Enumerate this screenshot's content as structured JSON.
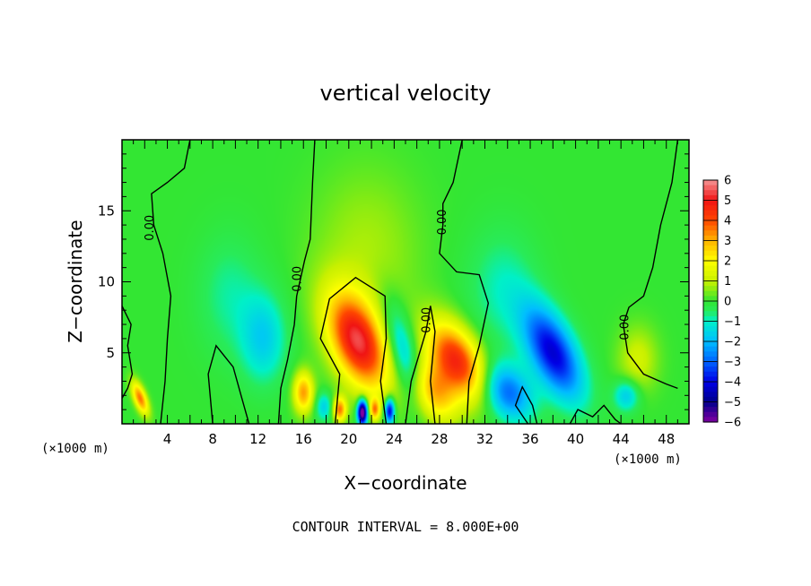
{
  "chart_data": {
    "type": "heatmap",
    "title": "vertical velocity",
    "xlabel": "X−coordinate",
    "ylabel": "Z−coordinate",
    "x_unit": "(×1000 m)",
    "y_unit": "(×1000 m)",
    "xlim": [
      0,
      50
    ],
    "ylim": [
      0,
      20
    ],
    "x_ticks": [
      4,
      8,
      12,
      16,
      20,
      24,
      28,
      32,
      36,
      40,
      44,
      48
    ],
    "y_ticks": [
      5,
      10,
      15
    ],
    "colorbar": {
      "ticks": [
        6,
        5,
        4,
        3,
        2,
        1,
        0,
        -1,
        -2,
        -3,
        -4,
        -5,
        -6
      ],
      "tick_labels": [
        "6",
        "5",
        "4",
        "3",
        "2",
        "1",
        "0",
        "−1",
        "−2",
        "−3",
        "−4",
        "−5",
        "−6"
      ],
      "range": [
        -6,
        6
      ]
    },
    "contour_label": "0.00",
    "footer": "CONTOUR INTERVAL = 8.000E+00",
    "features": [
      {
        "x": 20.8,
        "z": 5.8,
        "sx": 1.7,
        "sz": 2.4,
        "amp": 5.2,
        "tilt": -0.35
      },
      {
        "x": 29.5,
        "z": 4.5,
        "sx": 1.6,
        "sz": 1.9,
        "amp": 4.6,
        "tilt": -0.45
      },
      {
        "x": 27.5,
        "z": 2.2,
        "sx": 1.4,
        "sz": 1.5,
        "amp": 2.8,
        "tilt": -0.3
      },
      {
        "x": 16.0,
        "z": 2.2,
        "sx": 0.6,
        "sz": 1.0,
        "amp": 3.2,
        "tilt": 0.0
      },
      {
        "x": 1.6,
        "z": 1.8,
        "sx": 0.4,
        "sz": 0.8,
        "amp": 3.6,
        "tilt": -0.4
      },
      {
        "x": 21.5,
        "z": 12.0,
        "sx": 3.2,
        "sz": 4.0,
        "amp": 0.8,
        "tilt": 0.0
      },
      {
        "x": 45.5,
        "z": 4.5,
        "sx": 1.2,
        "sz": 1.6,
        "amp": 1.2,
        "tilt": 0.0
      },
      {
        "x": 38.0,
        "z": 5.0,
        "sx": 1.5,
        "sz": 2.3,
        "amp": -4.2,
        "tilt": -0.45
      },
      {
        "x": 34.0,
        "z": 2.2,
        "sx": 1.5,
        "sz": 1.4,
        "amp": -3.0,
        "tilt": -0.3
      },
      {
        "x": 12.5,
        "z": 6.0,
        "sx": 1.4,
        "sz": 2.2,
        "amp": -1.6,
        "tilt": 0.0
      },
      {
        "x": 24.8,
        "z": 5.0,
        "sx": 0.9,
        "sz": 2.5,
        "amp": -2.0,
        "tilt": -0.3
      },
      {
        "x": 21.2,
        "z": 0.8,
        "sx": 0.3,
        "sz": 0.6,
        "amp": -7.0,
        "tilt": 0.0
      },
      {
        "x": 23.6,
        "z": 0.9,
        "sx": 0.3,
        "sz": 0.6,
        "amp": -4.5,
        "tilt": 0.0
      },
      {
        "x": 44.5,
        "z": 2.0,
        "sx": 0.8,
        "sz": 0.8,
        "amp": -1.8,
        "tilt": 0.0
      },
      {
        "x": 9.5,
        "z": 9.0,
        "sx": 2.0,
        "sz": 3.0,
        "amp": -0.8,
        "tilt": 0.0
      },
      {
        "x": 33.5,
        "z": 9.5,
        "sx": 2.2,
        "sz": 3.0,
        "amp": -0.9,
        "tilt": 0.0
      },
      {
        "x": 17.8,
        "z": 1.2,
        "sx": 0.5,
        "sz": 0.7,
        "amp": -1.6,
        "tilt": 0.0
      },
      {
        "x": 19.2,
        "z": 1.0,
        "sx": 0.4,
        "sz": 0.6,
        "amp": 3.5,
        "tilt": 0.0
      },
      {
        "x": 22.3,
        "z": 1.0,
        "sx": 0.3,
        "sz": 0.5,
        "amp": 3.0,
        "tilt": 0.0
      }
    ],
    "zero_contours": [
      [
        [
          6.0,
          20.0
        ],
        [
          5.5,
          18.0
        ],
        [
          4.0,
          17.0
        ],
        [
          2.6,
          16.2
        ],
        [
          2.8,
          14.0
        ],
        [
          3.6,
          12.0
        ],
        [
          4.3,
          9.0
        ],
        [
          4.0,
          6.0
        ],
        [
          3.8,
          3.0
        ],
        [
          3.4,
          0.0
        ]
      ],
      [
        [
          17.0,
          20.0
        ],
        [
          16.8,
          17.0
        ],
        [
          16.6,
          13.0
        ],
        [
          16.1,
          11.5
        ],
        [
          15.4,
          9.0
        ],
        [
          15.2,
          7.0
        ],
        [
          14.6,
          4.5
        ],
        [
          14.0,
          2.5
        ],
        [
          13.8,
          0.0
        ]
      ],
      [
        [
          30.0,
          20.0
        ],
        [
          29.2,
          17.0
        ],
        [
          28.3,
          15.5
        ],
        [
          28.3,
          14.0
        ],
        [
          28.0,
          12.0
        ],
        [
          29.5,
          10.7
        ],
        [
          31.5,
          10.5
        ],
        [
          32.3,
          8.5
        ],
        [
          31.5,
          5.5
        ],
        [
          30.6,
          3.0
        ],
        [
          30.4,
          0.0
        ]
      ],
      [
        [
          49.0,
          20.0
        ],
        [
          48.5,
          17.0
        ],
        [
          47.5,
          14.0
        ],
        [
          46.8,
          11.0
        ],
        [
          46.0,
          9.0
        ],
        [
          44.7,
          8.2
        ],
        [
          44.2,
          7.0
        ],
        [
          44.6,
          5.0
        ],
        [
          46.0,
          3.5
        ],
        [
          48.0,
          2.8
        ],
        [
          49.0,
          2.5
        ]
      ],
      [
        [
          0.0,
          8.3
        ],
        [
          0.8,
          7.0
        ],
        [
          0.5,
          5.5
        ],
        [
          0.9,
          3.5
        ],
        [
          0.5,
          2.5
        ],
        [
          0.0,
          1.8
        ]
      ],
      [
        [
          8.0,
          0.0
        ],
        [
          7.6,
          3.5
        ],
        [
          8.3,
          5.5
        ],
        [
          9.8,
          4.0
        ],
        [
          10.5,
          2.0
        ],
        [
          11.2,
          0.0
        ]
      ],
      [
        [
          18.8,
          0.0
        ],
        [
          19.2,
          3.5
        ],
        [
          17.5,
          6.0
        ],
        [
          18.3,
          8.8
        ],
        [
          20.6,
          10.3
        ],
        [
          23.2,
          9.0
        ],
        [
          23.3,
          6.0
        ],
        [
          22.8,
          3.0
        ],
        [
          23.3,
          0.0
        ]
      ],
      [
        [
          25.0,
          0.0
        ],
        [
          25.5,
          3.0
        ],
        [
          26.8,
          6.5
        ],
        [
          27.2,
          8.3
        ],
        [
          27.6,
          6.5
        ],
        [
          27.2,
          3.0
        ],
        [
          27.6,
          0.0
        ]
      ],
      [
        [
          35.8,
          0.0
        ],
        [
          34.7,
          1.3
        ],
        [
          35.3,
          2.6
        ],
        [
          36.2,
          1.3
        ],
        [
          36.6,
          0.0
        ]
      ],
      [
        [
          39.5,
          0.0
        ],
        [
          40.2,
          1.0
        ],
        [
          41.5,
          0.5
        ],
        [
          42.5,
          1.3
        ],
        [
          43.5,
          0.3
        ],
        [
          44.0,
          0.0
        ]
      ]
    ],
    "contour_label_positions": [
      {
        "x": 2.5,
        "z": 13.8,
        "rot": -90
      },
      {
        "x": 15.5,
        "z": 10.2,
        "rot": -90
      },
      {
        "x": 28.3,
        "z": 14.2,
        "rot": -90
      },
      {
        "x": 26.9,
        "z": 7.3,
        "rot": -90
      },
      {
        "x": 44.4,
        "z": 6.8,
        "rot": -90
      }
    ]
  }
}
